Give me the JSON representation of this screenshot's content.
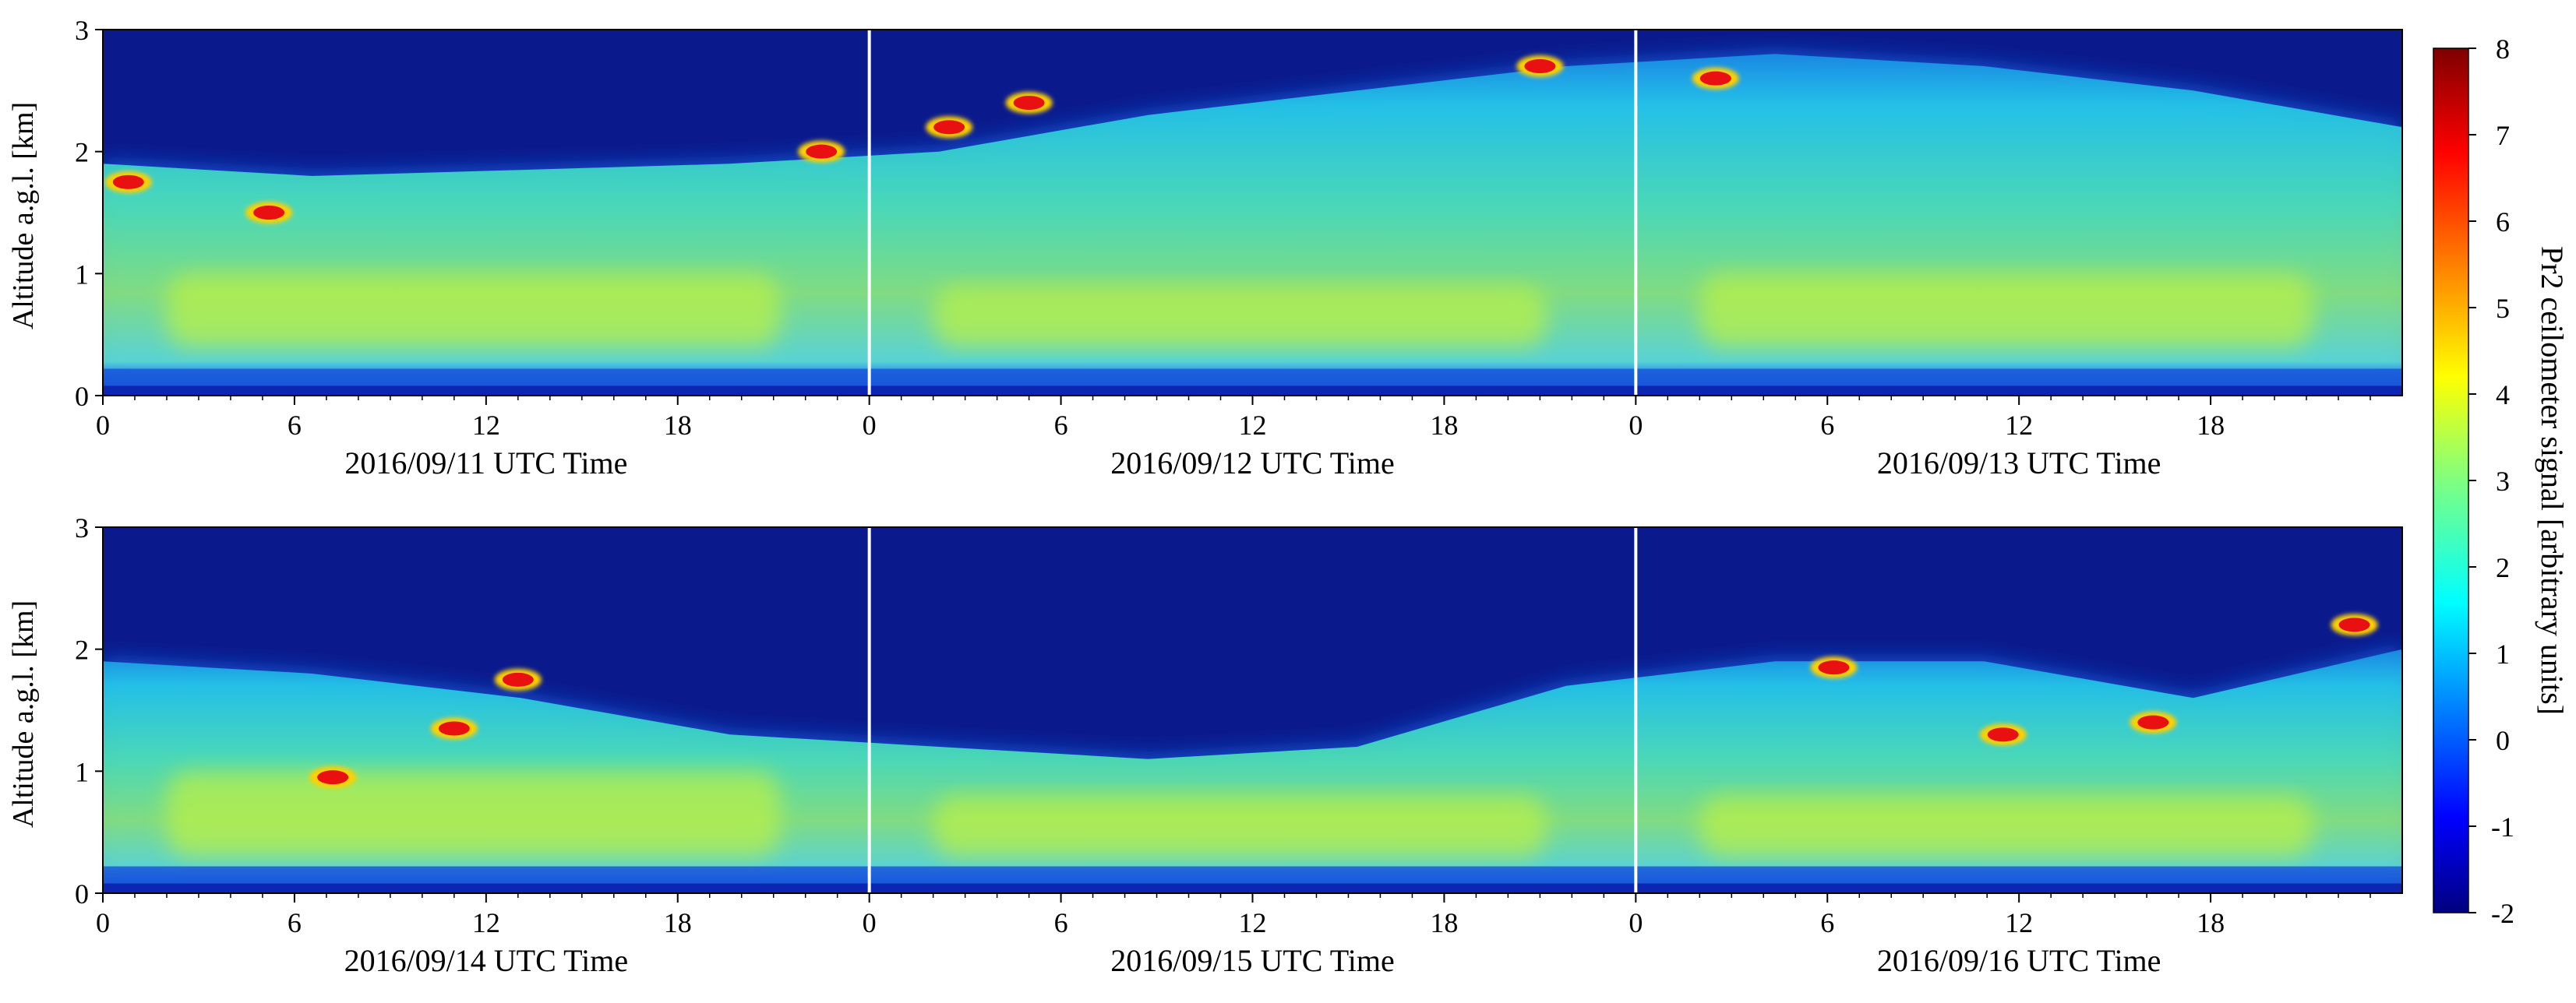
{
  "chart_data": {
    "type": "heatmap",
    "xlabel_suffix": "UTC Time",
    "ylabel": "Altitude a.g.l. [km]",
    "ylim": [
      0,
      3
    ],
    "yticks": [
      "0",
      "1",
      "2",
      "3"
    ],
    "xticks": [
      "0",
      "6",
      "12",
      "18"
    ],
    "hours_per_day": 24,
    "colorbar": {
      "label": "Pr2 ceilometer signal [arbitrary units]",
      "range": [
        -2,
        8
      ],
      "ticks": [
        "8",
        "7",
        "6",
        "5",
        "4",
        "3",
        "2",
        "1",
        "0",
        "-1",
        "-2"
      ]
    },
    "colors": {
      "background_high": "#0a1a8c",
      "separator": "#ffffff"
    },
    "panels": [
      {
        "days": [
          "2016/09/11",
          "2016/09/12",
          "2016/09/13"
        ],
        "mixing_layer_top_km": [
          1.9,
          1.8,
          1.85,
          1.9,
          2.0,
          2.3,
          2.5,
          2.7,
          2.8,
          2.7,
          2.5,
          2.2
        ],
        "elevated_layer_km": [
          [
            0.4,
            1.0
          ],
          [
            0.4,
            0.9
          ],
          [
            0.4,
            1.0
          ]
        ],
        "cloud_features": [
          {
            "day": 0,
            "hour": 0.8,
            "alt_km": 1.75
          },
          {
            "day": 0,
            "hour": 5.2,
            "alt_km": 1.5
          },
          {
            "day": 0,
            "hour": 22.5,
            "alt_km": 2.0
          },
          {
            "day": 1,
            "hour": 2.5,
            "alt_km": 2.2
          },
          {
            "day": 1,
            "hour": 5.0,
            "alt_km": 2.4
          },
          {
            "day": 1,
            "hour": 21.0,
            "alt_km": 2.7
          },
          {
            "day": 2,
            "hour": 2.5,
            "alt_km": 2.6
          }
        ]
      },
      {
        "days": [
          "2016/09/14",
          "2016/09/15",
          "2016/09/16"
        ],
        "mixing_layer_top_km": [
          1.9,
          1.8,
          1.6,
          1.3,
          1.2,
          1.1,
          1.2,
          1.7,
          1.9,
          1.9,
          1.6,
          2.0
        ],
        "elevated_layer_km": [
          [
            0.3,
            1.0
          ],
          [
            0.3,
            0.8
          ],
          [
            0.3,
            0.8
          ]
        ],
        "cloud_features": [
          {
            "day": 0,
            "hour": 7.2,
            "alt_km": 0.95
          },
          {
            "day": 0,
            "hour": 11.0,
            "alt_km": 1.35
          },
          {
            "day": 0,
            "hour": 13.0,
            "alt_km": 1.75
          },
          {
            "day": 2,
            "hour": 6.2,
            "alt_km": 1.85
          },
          {
            "day": 2,
            "hour": 11.5,
            "alt_km": 1.3
          },
          {
            "day": 2,
            "hour": 16.2,
            "alt_km": 1.4
          },
          {
            "day": 2,
            "hour": 22.5,
            "alt_km": 2.2
          }
        ]
      }
    ]
  }
}
